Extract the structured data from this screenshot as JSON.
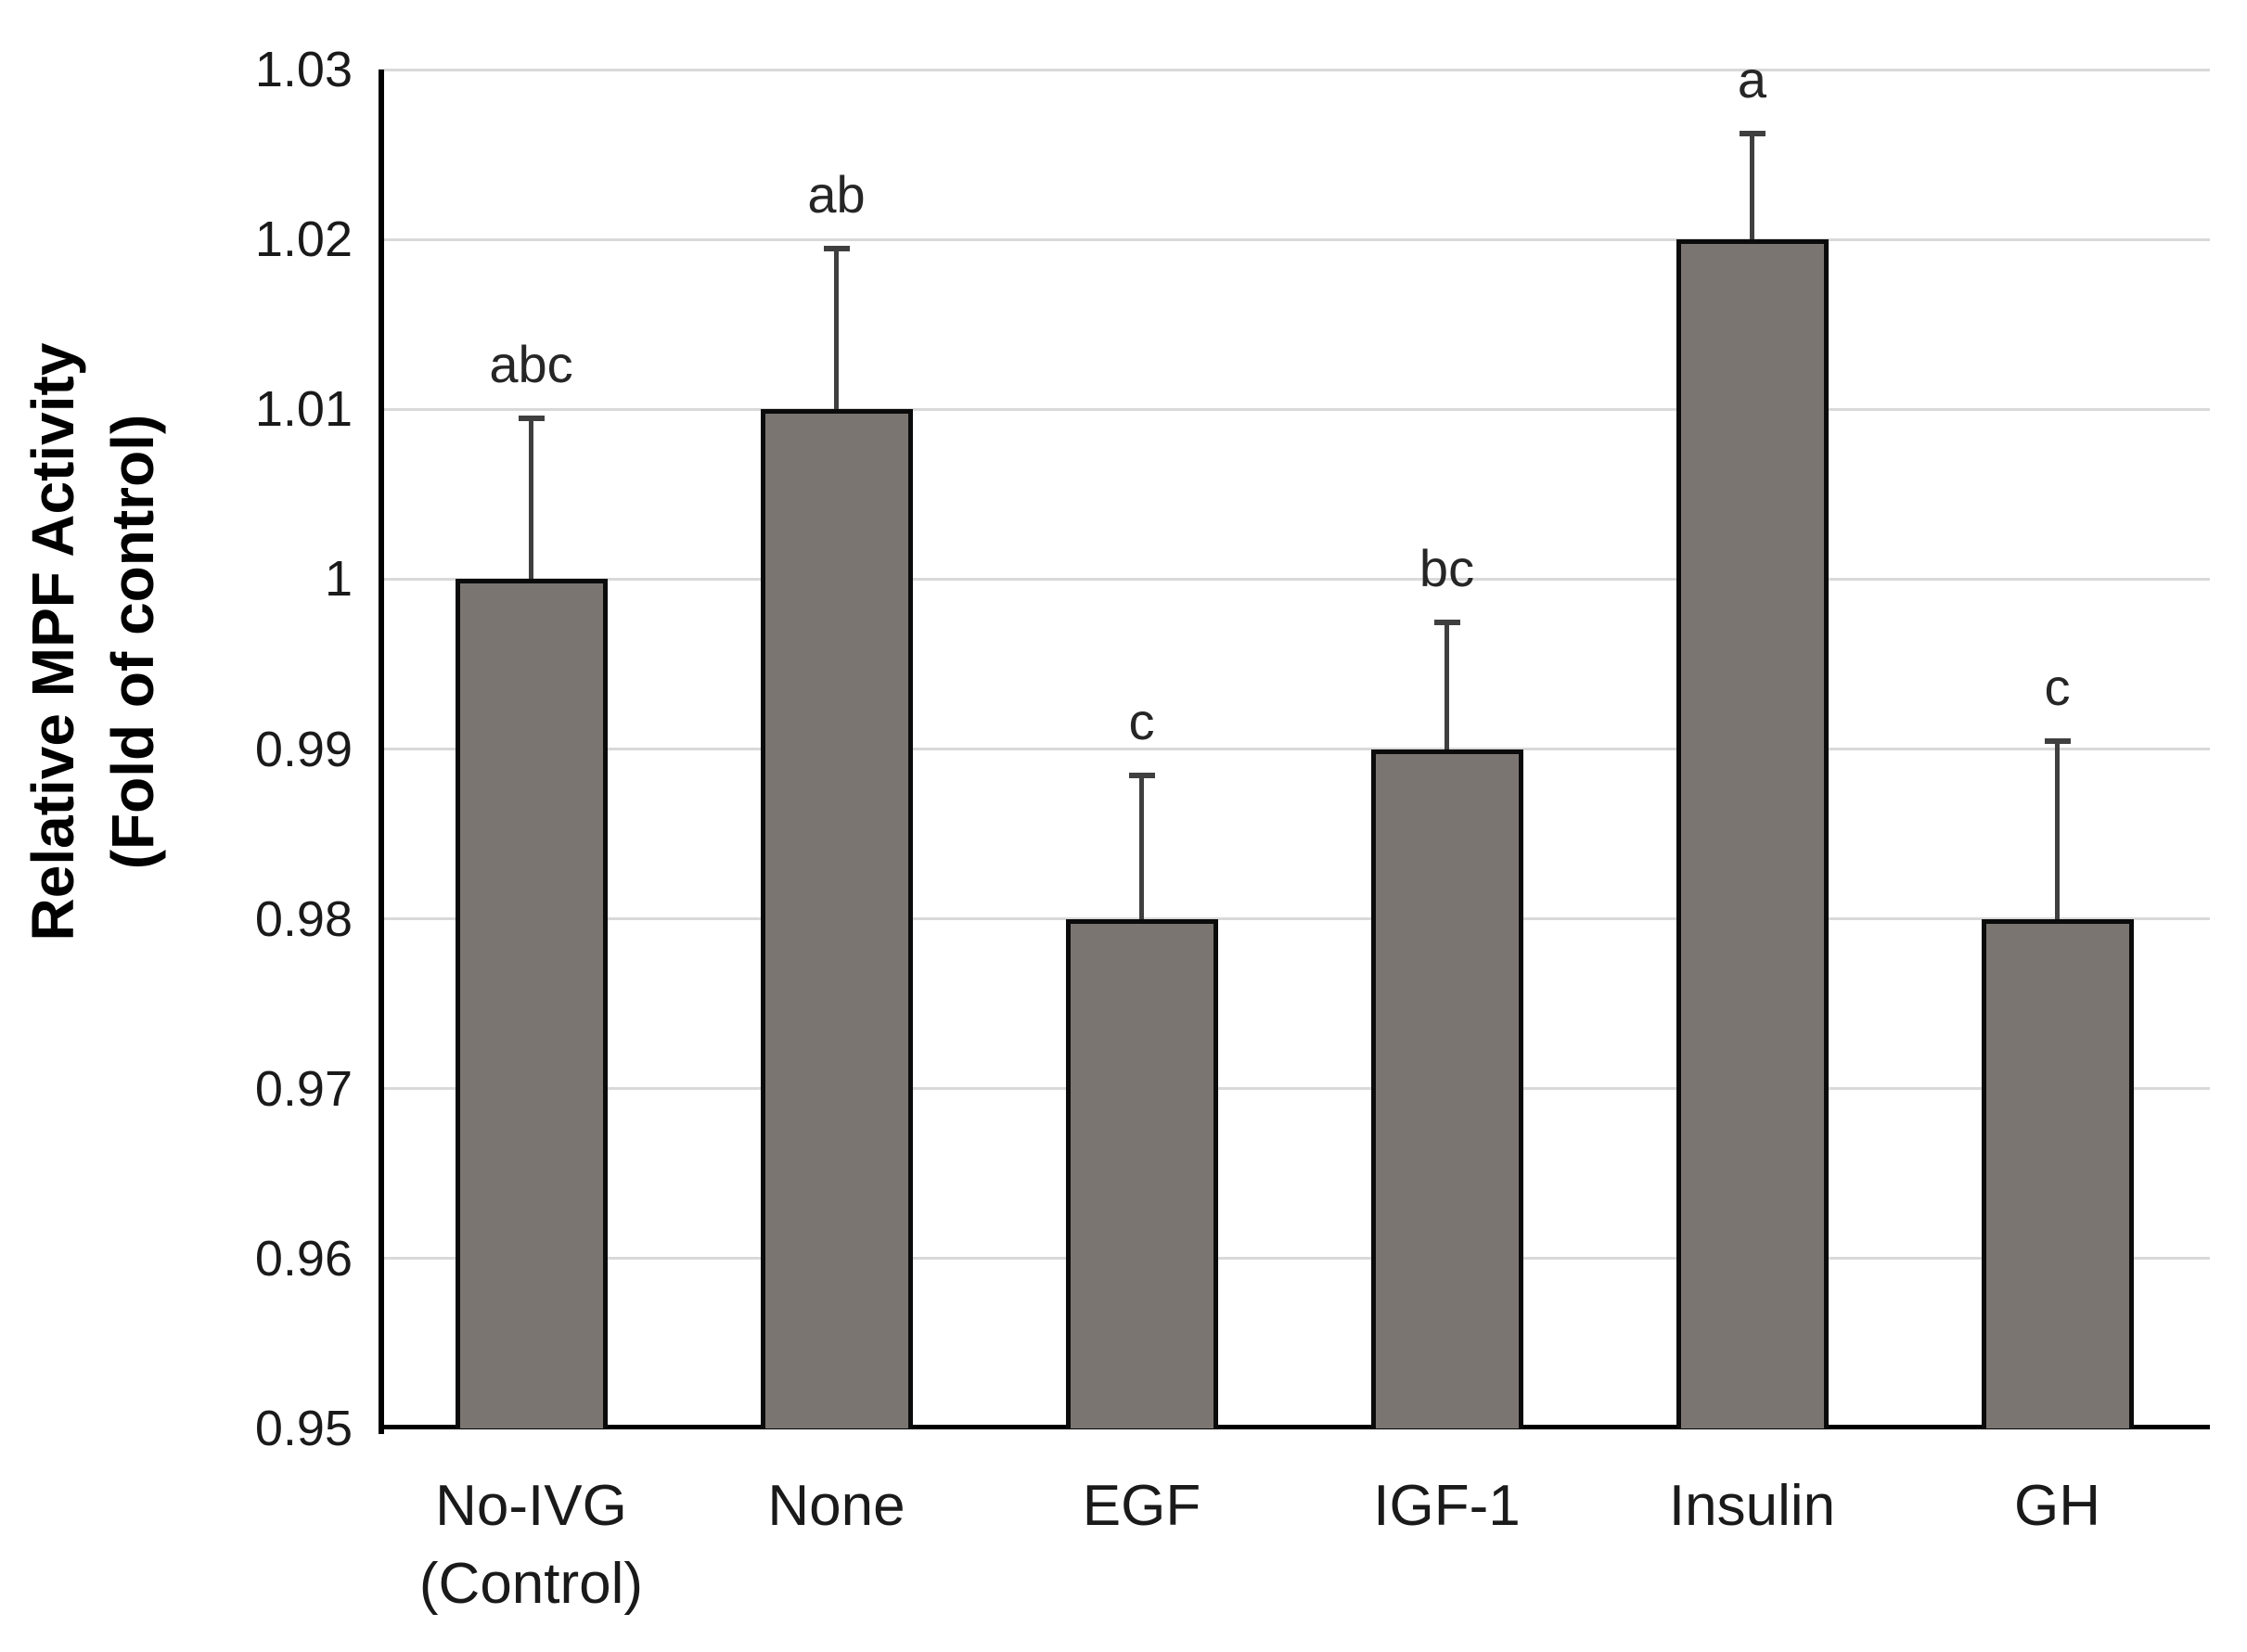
{
  "chart_data": {
    "type": "bar",
    "title": "",
    "ylabel_line1": "Relative MPF Activity",
    "ylabel_line2": "(Fold of control)",
    "xlabel": "",
    "categories": [
      [
        "No-IVG",
        "(Control)"
      ],
      [
        "None"
      ],
      [
        "EGF"
      ],
      [
        "IGF-1"
      ],
      [
        "Insulin"
      ],
      [
        "GH"
      ]
    ],
    "values": [
      1.0,
      1.01,
      0.98,
      0.99,
      1.02,
      0.98
    ],
    "error_up": [
      0.0095,
      0.0095,
      0.0085,
      0.0075,
      0.0063,
      0.0105
    ],
    "sig_letters": [
      "abc",
      "ab",
      "c",
      "bc",
      "a",
      "c"
    ],
    "ylim": [
      0.95,
      1.03
    ],
    "ytick_values": [
      0.95,
      0.96,
      0.97,
      0.98,
      0.99,
      1.0,
      1.01,
      1.02,
      1.03
    ],
    "ytick_labels": [
      "0.95",
      "0.96",
      "0.97",
      "0.98",
      "0.99",
      "1",
      "1.01",
      "1.02",
      "1.03"
    ],
    "grid": true,
    "legend": null,
    "colors": {
      "bar_fill": "#7b7572",
      "bar_border": "#0b0b0b",
      "gridline": "#d9d9d9",
      "axis": "#000000",
      "error_bar": "#3f3f3f",
      "text": "#1a1a1a"
    }
  }
}
